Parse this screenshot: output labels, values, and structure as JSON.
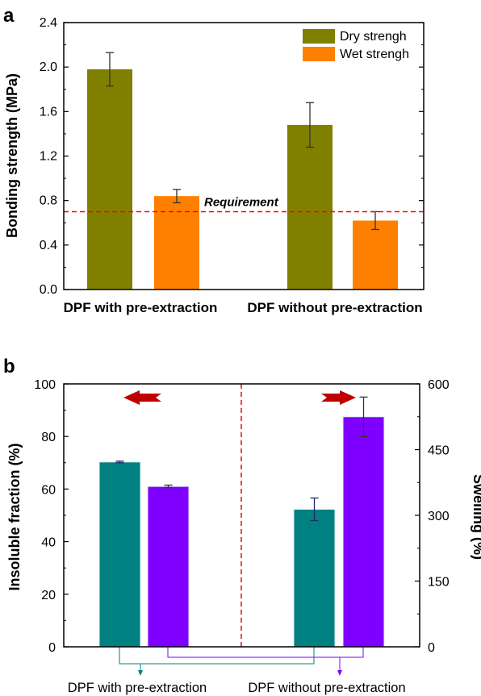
{
  "chart_data": [
    {
      "panel_label": "a",
      "type": "bar",
      "categories": [
        "DPF with pre-extraction",
        "DPF without pre-extraction"
      ],
      "series": [
        {
          "name": "Dry strengh",
          "color": "#808000",
          "values": [
            1.98,
            1.48
          ],
          "errors": [
            0.15,
            0.2
          ]
        },
        {
          "name": "Wet strengh",
          "color": "#ff8000",
          "values": [
            0.84,
            0.62
          ],
          "errors": [
            0.06,
            0.08
          ]
        }
      ],
      "ylabel": "Bonding strength (MPa)",
      "ylim": [
        0,
        2.4
      ],
      "yticks": [
        "0.0",
        "0.4",
        "0.8",
        "1.2",
        "1.6",
        "2.0",
        "2.4"
      ],
      "reference_line": {
        "value": 0.7,
        "label": "Requirement",
        "color": "#ff0000"
      },
      "legend_position": "top-right"
    },
    {
      "panel_label": "b",
      "type": "bar",
      "categories": [
        "DPF with pre-extraction",
        "DPF without pre-extraction"
      ],
      "series": [
        {
          "axis": "left",
          "color": "#008080",
          "values": [
            70.3,
            52.3
          ],
          "errors": [
            0.3,
            4.3
          ]
        },
        {
          "axis": "right",
          "color": "#7f00ff",
          "values": [
            366,
            525
          ],
          "errors": [
            3,
            45
          ]
        }
      ],
      "ylabel_left": "Insoluble fraction (%)",
      "ylabel_right": "Swelling (%)",
      "ylim_left": [
        0,
        100
      ],
      "ylim_right": [
        0,
        600
      ],
      "yticks_left": [
        "0",
        "20",
        "40",
        "60",
        "80",
        "100"
      ],
      "yticks_right": [
        "0",
        "150",
        "300",
        "450",
        "600"
      ],
      "arrows": [
        {
          "direction": "left",
          "color": "#c00000"
        },
        {
          "direction": "right",
          "color": "#c00000"
        }
      ],
      "divider_color": "#ff0000"
    }
  ]
}
